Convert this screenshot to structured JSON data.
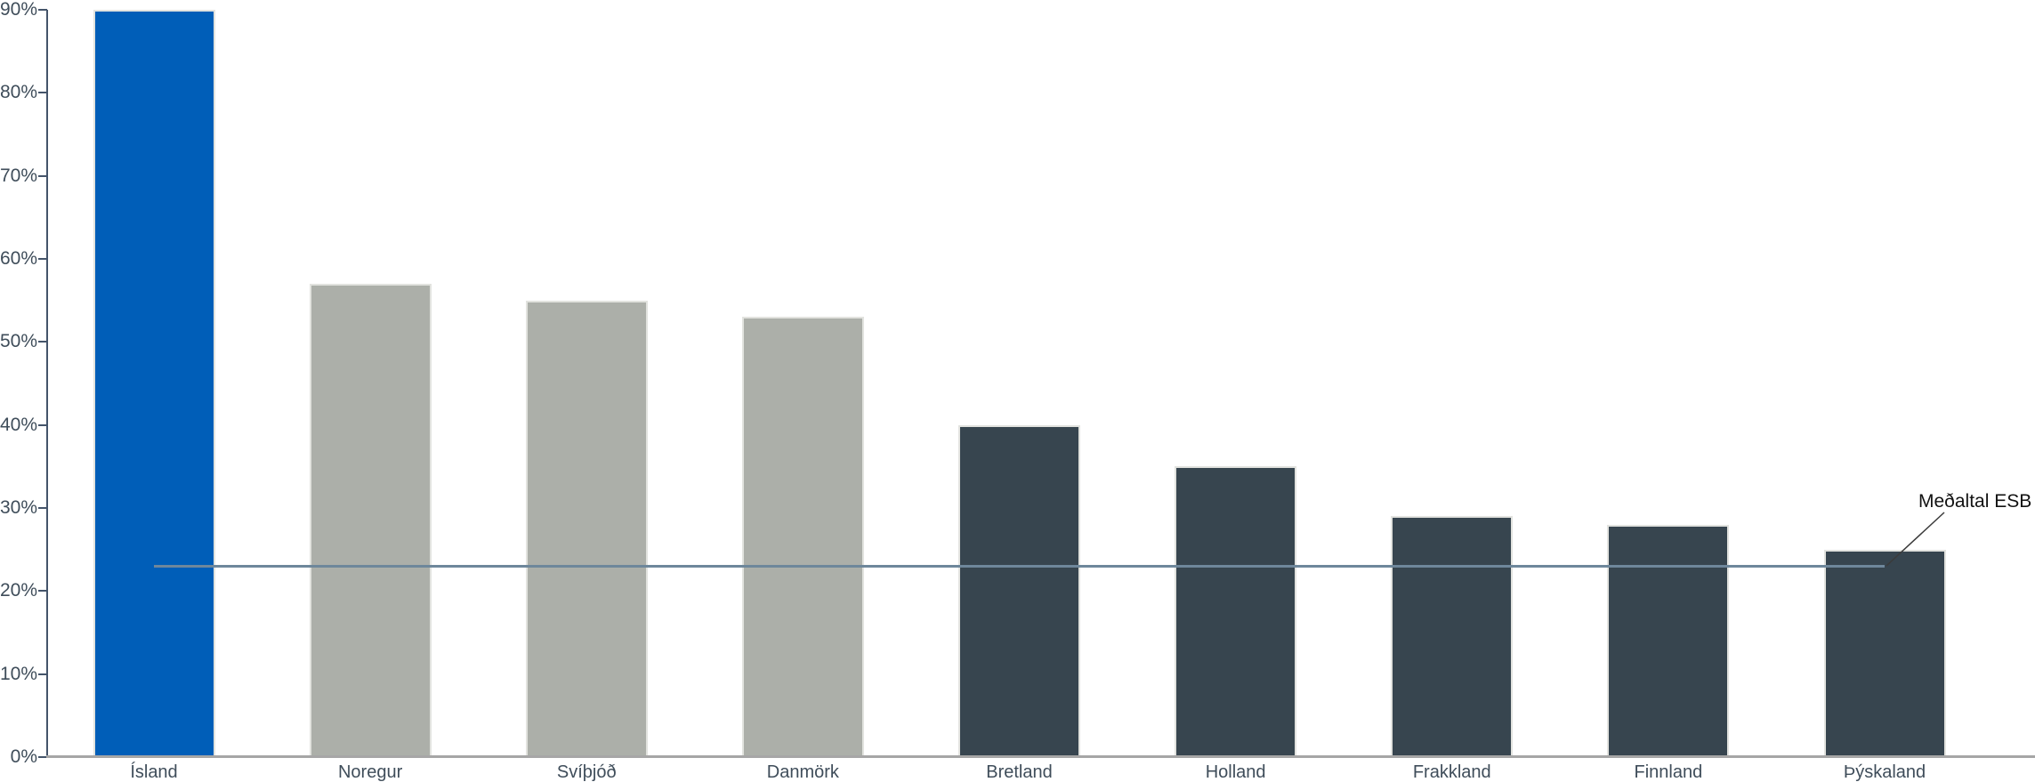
{
  "chart_data": {
    "type": "bar",
    "title": "",
    "categories": [
      "Ísland",
      "Noregur",
      "Svíþjóð",
      "Danmörk",
      "Bretland",
      "Holland",
      "Frakkland",
      "Finnland",
      "Þýskaland"
    ],
    "values": [
      90,
      57,
      55,
      53,
      40,
      35,
      29,
      28,
      25
    ],
    "unit": "%",
    "xlabel": "",
    "ylabel": "",
    "ylim": [
      0,
      90
    ],
    "ytick_step": 10,
    "ytick_labels": [
      "0%",
      "10%",
      "20%",
      "30%",
      "40%",
      "50%",
      "60%",
      "70%",
      "80%",
      "90%"
    ],
    "bar_colors": [
      "#005EB8",
      "#ACAFA9",
      "#ACAFA9",
      "#ACAFA9",
      "#37454F",
      "#37454F",
      "#37454F",
      "#37454F",
      "#37454F"
    ],
    "reference_line": {
      "label": "Meðaltal ESB",
      "value": 23,
      "color": "#6E879B"
    },
    "grid": false,
    "legend": "none"
  },
  "colors": {
    "highlight_blue": "#005EB8",
    "neutral_gray": "#ACAFA9",
    "dark_slate": "#37454F",
    "axis_label": "#3F4D5A",
    "y_axis_line": "#44546A",
    "x_axis_line": "#A6A6A6",
    "reference_line": "#6E879B",
    "callout_line": "#3B3B3B",
    "background": "#FFFFFF"
  }
}
